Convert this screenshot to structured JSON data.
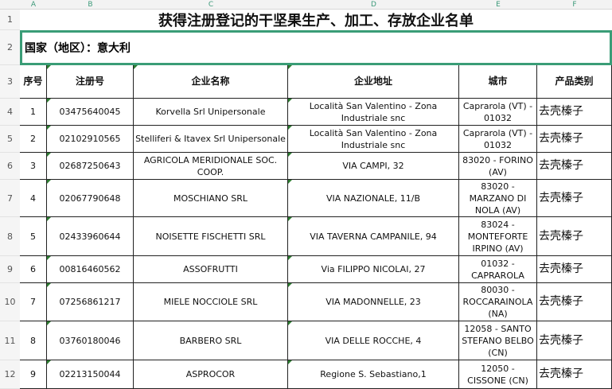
{
  "columns": [
    "A",
    "B",
    "C",
    "D",
    "E",
    "F"
  ],
  "row_numbers": [
    "1",
    "2",
    "3",
    "4",
    "5",
    "6",
    "7",
    "8",
    "9",
    "10",
    "11",
    "12"
  ],
  "title": "获得注册登记的干坚果生产、加工、存放企业名单",
  "country": "国家（地区）：意大利",
  "headers": [
    "序号",
    "注册号",
    "企业名称",
    "企业地址",
    "城市",
    "产品类别"
  ],
  "rows": [
    [
      "1",
      "03475640045",
      "Korvella Srl Unipersonale",
      "Località San Valentino - Zona Industriale snc",
      "Caprarola (VT) - 01032",
      "去壳榛子"
    ],
    [
      "2",
      "02102910565",
      "Stelliferi & Itavex Srl Unipersonale",
      "Località San Valentino - Zona Industriale snc",
      "Caprarola (VT) - 01032",
      "去壳榛子"
    ],
    [
      "3",
      "02687250643",
      "AGRICOLA MERIDIONALE SOC. COOP.",
      "VIA CAMPI, 32",
      "83020 - FORINO (AV)",
      "去壳榛子"
    ],
    [
      "4",
      "02067790648",
      "MOSCHIANO SRL",
      "VIA NAZIONALE, 11/B",
      "83020 - MARZANO DI NOLA (AV)",
      "去壳榛子"
    ],
    [
      "5",
      "02433960644",
      "NOISETTE FISCHETTI SRL",
      "VIA TAVERNA CAMPANILE, 94",
      "83024 - MONTEFORTE IRPINO (AV)",
      "去壳榛子"
    ],
    [
      "6",
      "00816460562",
      "ASSOFRUTTI",
      "Via FILIPPO NICOLAI, 27",
      "01032 - CAPRAROLA",
      "去壳榛子"
    ],
    [
      "7",
      "07256861217",
      "MIELE NOCCIOLE SRL",
      "VIA MADONNELLE, 23",
      "80030 - ROCCARAINOLA (NA)",
      "去壳榛子"
    ],
    [
      "8",
      "03760180046",
      "BARBERO SRL",
      "VIA DELLE ROCCHE, 4",
      "12058 - SANTO STEFANO BELBO (CN)",
      "去壳榛子"
    ],
    [
      "9",
      "02213150044",
      "ASPROCOR",
      "Regione S. Sebastiano,1",
      "12050 - CISSONE (CN)",
      "去壳榛子"
    ]
  ],
  "colors": {
    "selection": "#3a9d77",
    "header_letters": "#3d9a7a"
  }
}
